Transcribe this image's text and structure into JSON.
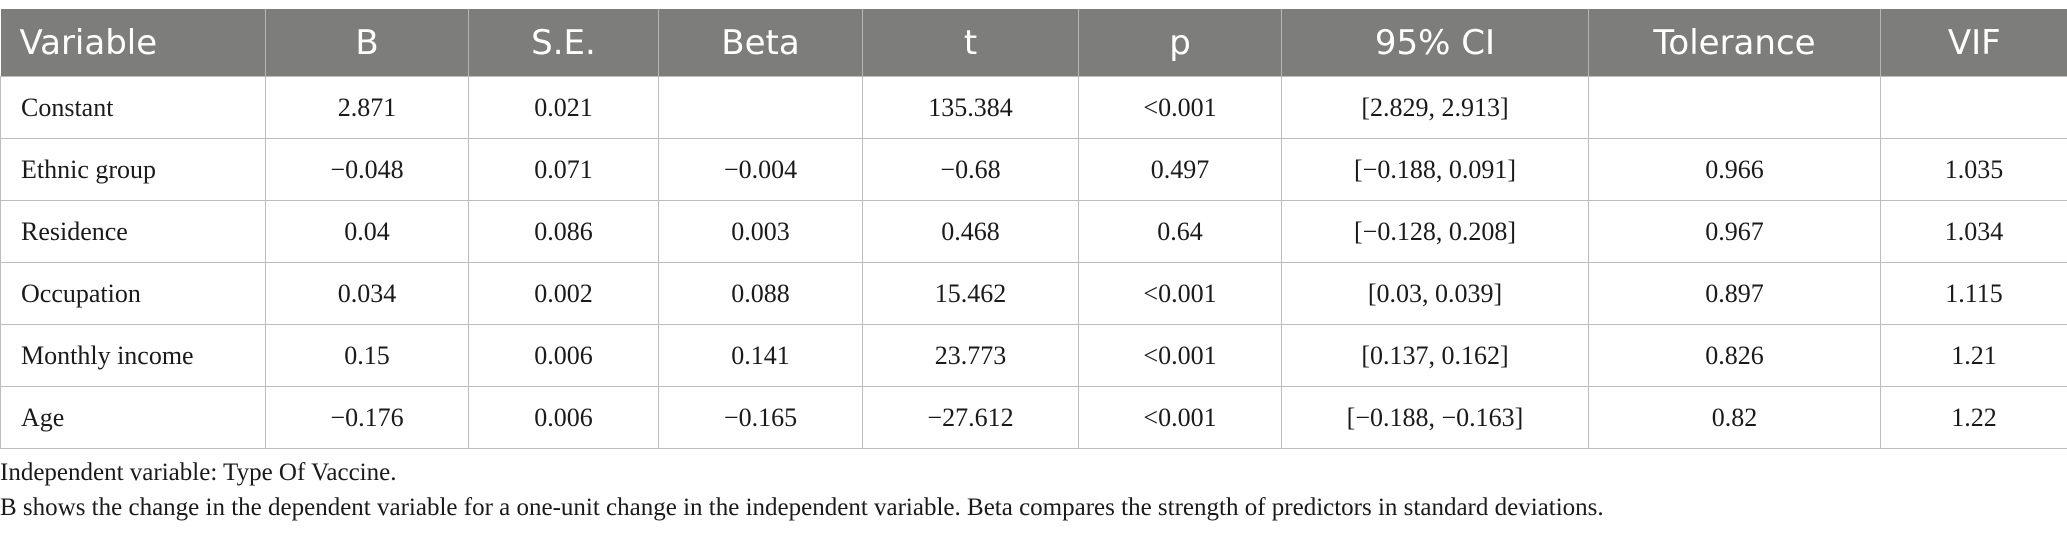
{
  "table": {
    "headers": [
      "Variable",
      "B",
      "S.E.",
      "Beta",
      "t",
      "p",
      "95% CI",
      "Tolerance",
      "VIF"
    ],
    "rows": [
      [
        "Constant",
        "2.871",
        "0.021",
        "",
        "135.384",
        "<0.001",
        "[2.829, 2.913]",
        "",
        ""
      ],
      [
        "Ethnic group",
        "−0.048",
        "0.071",
        "−0.004",
        "−0.68",
        "0.497",
        "[−0.188, 0.091]",
        "0.966",
        "1.035"
      ],
      [
        "Residence",
        "0.04",
        "0.086",
        "0.003",
        "0.468",
        "0.64",
        "[−0.128, 0.208]",
        "0.967",
        "1.034"
      ],
      [
        "Occupation",
        "0.034",
        "0.002",
        "0.088",
        "15.462",
        "<0.001",
        "[0.03, 0.039]",
        "0.897",
        "1.115"
      ],
      [
        "Monthly income",
        "0.15",
        "0.006",
        "0.141",
        "23.773",
        "<0.001",
        "[0.137, 0.162]",
        "0.826",
        "1.21"
      ],
      [
        "Age",
        "−0.176",
        "0.006",
        "−0.165",
        "−27.612",
        "<0.001",
        "[−0.188, −0.163]",
        "0.82",
        "1.22"
      ]
    ]
  },
  "notes": {
    "line1": "Independent variable: Type Of Vaccine.",
    "line2": "B shows the change in the dependent variable for a one-unit change in the independent variable. Beta compares the strength of predictors in standard deviations."
  },
  "colors": {
    "header_background": "#7d7d7c",
    "header_text": "#ffffff",
    "grid_lines": "#bdbdbd"
  }
}
